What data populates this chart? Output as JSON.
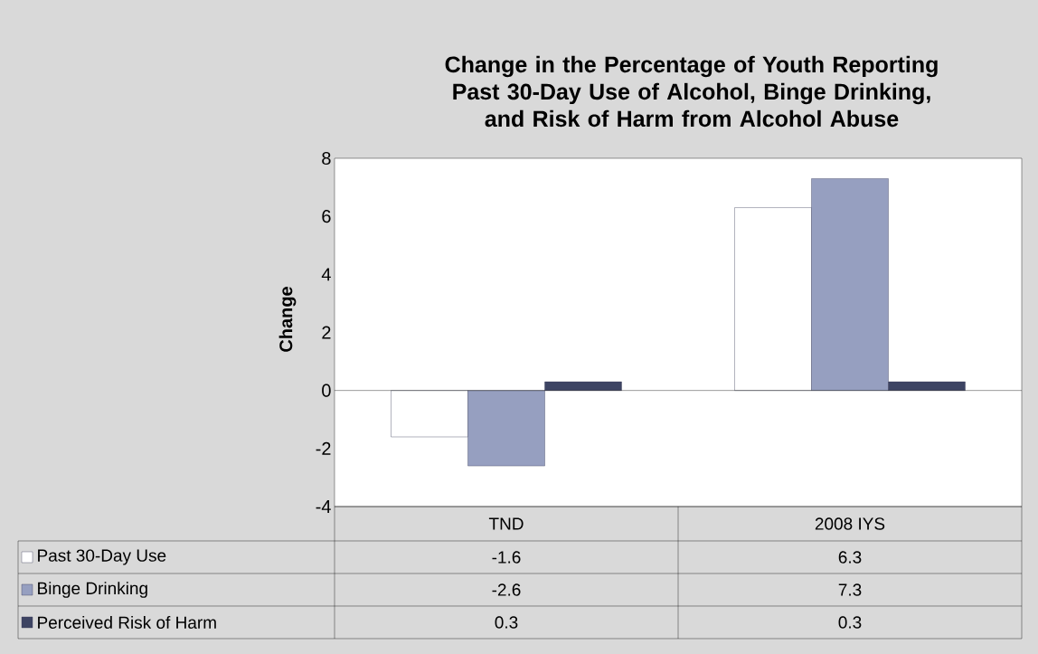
{
  "chart_data": {
    "type": "bar",
    "title": "Change in the Percentage of Youth Reporting Past 30-Day Use of Alcohol, Binge Drinking, and Risk of Harm from Alcohol Abuse",
    "ylabel": "Change",
    "categories": [
      "TND",
      "2008 IYS"
    ],
    "series": [
      {
        "name": "Past 30-Day Use",
        "color": "#ffffff",
        "values": [
          -1.6,
          6.3
        ]
      },
      {
        "name": "Binge Drinking",
        "color": "#969fc0",
        "values": [
          -2.6,
          7.3
        ]
      },
      {
        "name": "Perceived Risk of Harm",
        "color": "#3d4463",
        "values": [
          0.3,
          0.3
        ]
      }
    ],
    "ylim": [
      -4,
      8
    ],
    "yticks": [
      -4,
      -2,
      0,
      2,
      4,
      6,
      8
    ],
    "ref_lines": [
      {
        "axis": "y",
        "value": 0,
        "color": "#000000"
      }
    ],
    "data_labels": true,
    "legend": "bottom"
  }
}
